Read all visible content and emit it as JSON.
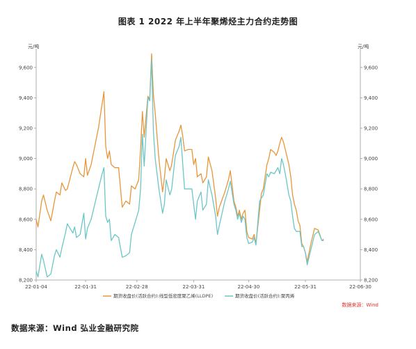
{
  "title": "图表 1 2022 年上半年聚烯烃主力合约走势图",
  "source_note": "数据来源：Wind 弘业金融研究院",
  "chart_data": {
    "type": "line",
    "x_labels": [
      "22-01-04",
      "22-01-31",
      "22-02-28",
      "22-03-31",
      "22-04-30",
      "22-05-31",
      "22-06-30"
    ],
    "x_range": [
      "2022-01-04",
      "2022-06-30"
    ],
    "ylim": [
      8200,
      9700
    ],
    "yticks": [
      8200,
      8400,
      8600,
      8800,
      9000,
      9200,
      9400,
      9600
    ],
    "ytick_labels": [
      "8,200",
      "8,400",
      "8,600",
      "8,800",
      "9,000",
      "9,200",
      "9,400",
      "9,600"
    ],
    "y_unit_left": "元/吨",
    "y_unit_right": "元/吨",
    "legend_position": "bottom",
    "source_in_chart": "数据来源：Wind",
    "series": [
      {
        "name": "期货收盘价(活跃合约):线型低密度聚乙烯(LLDPE)",
        "color": "#E8963A",
        "points": [
          [
            "2022-01-04",
            8600
          ],
          [
            "2022-01-05",
            8550
          ],
          [
            "2022-01-07",
            8720
          ],
          [
            "2022-01-08",
            8760
          ],
          [
            "2022-01-10",
            8660
          ],
          [
            "2022-01-12",
            8590
          ],
          [
            "2022-01-14",
            8720
          ],
          [
            "2022-01-15",
            8780
          ],
          [
            "2022-01-17",
            8760
          ],
          [
            "2022-01-18",
            8840
          ],
          [
            "2022-01-20",
            8790
          ],
          [
            "2022-01-21",
            8800
          ],
          [
            "2022-01-24",
            8940
          ],
          [
            "2022-01-25",
            8980
          ],
          [
            "2022-01-26",
            8960
          ],
          [
            "2022-01-28",
            8900
          ],
          [
            "2022-01-30",
            8880
          ],
          [
            "2022-01-31",
            9000
          ],
          [
            "2022-02-01",
            8890
          ],
          [
            "2022-02-03",
            8960
          ],
          [
            "2022-02-07",
            9200
          ],
          [
            "2022-02-09",
            9360
          ],
          [
            "2022-02-10",
            9440
          ],
          [
            "2022-02-11",
            9080
          ],
          [
            "2022-02-12",
            9000
          ],
          [
            "2022-02-13",
            9050
          ],
          [
            "2022-02-14",
            8960
          ],
          [
            "2022-02-16",
            8940
          ],
          [
            "2022-02-18",
            8940
          ],
          [
            "2022-02-20",
            8680
          ],
          [
            "2022-02-22",
            8720
          ],
          [
            "2022-02-24",
            8700
          ],
          [
            "2022-02-25",
            8820
          ],
          [
            "2022-02-27",
            8800
          ],
          [
            "2022-03-01",
            8860
          ],
          [
            "2022-03-02",
            9060
          ],
          [
            "2022-03-03",
            9310
          ],
          [
            "2022-03-04",
            9140
          ],
          [
            "2022-03-06",
            9410
          ],
          [
            "2022-03-07",
            9390
          ],
          [
            "2022-03-08",
            9690
          ],
          [
            "2022-03-09",
            9420
          ],
          [
            "2022-03-10",
            9300
          ],
          [
            "2022-03-12",
            9000
          ],
          [
            "2022-03-14",
            8780
          ],
          [
            "2022-03-15",
            8870
          ],
          [
            "2022-03-16",
            9000
          ],
          [
            "2022-03-18",
            8920
          ],
          [
            "2022-03-19",
            8960
          ],
          [
            "2022-03-21",
            9120
          ],
          [
            "2022-03-23",
            9180
          ],
          [
            "2022-03-24",
            9220
          ],
          [
            "2022-03-25",
            9150
          ],
          [
            "2022-03-26",
            9050
          ],
          [
            "2022-03-28",
            9060
          ],
          [
            "2022-03-30",
            9060
          ],
          [
            "2022-03-31",
            8960
          ],
          [
            "2022-04-01",
            9000
          ],
          [
            "2022-04-02",
            8880
          ],
          [
            "2022-04-04",
            8900
          ],
          [
            "2022-04-05",
            8840
          ],
          [
            "2022-04-07",
            8880
          ],
          [
            "2022-04-08",
            9010
          ],
          [
            "2022-04-10",
            8920
          ],
          [
            "2022-04-12",
            8740
          ],
          [
            "2022-04-13",
            8620
          ],
          [
            "2022-04-14",
            8680
          ],
          [
            "2022-04-17",
            8780
          ],
          [
            "2022-04-19",
            8860
          ],
          [
            "2022-04-20",
            8920
          ],
          [
            "2022-04-22",
            8720
          ],
          [
            "2022-04-23",
            8680
          ],
          [
            "2022-04-24",
            8620
          ],
          [
            "2022-04-25",
            8660
          ],
          [
            "2022-04-26",
            8600
          ],
          [
            "2022-04-27",
            8640
          ],
          [
            "2022-04-28",
            8660
          ],
          [
            "2022-04-29",
            8520
          ],
          [
            "2022-04-30",
            8480
          ],
          [
            "2022-05-02",
            8470
          ],
          [
            "2022-05-03",
            8500
          ],
          [
            "2022-05-04",
            8440
          ],
          [
            "2022-05-06",
            8660
          ],
          [
            "2022-05-07",
            8770
          ],
          [
            "2022-05-08",
            8800
          ],
          [
            "2022-05-10",
            8960
          ],
          [
            "2022-05-11",
            9000
          ],
          [
            "2022-05-12",
            9060
          ],
          [
            "2022-05-14",
            9040
          ],
          [
            "2022-05-15",
            9020
          ],
          [
            "2022-05-16",
            9050
          ],
          [
            "2022-05-17",
            9100
          ],
          [
            "2022-05-18",
            9140
          ],
          [
            "2022-05-19",
            9110
          ],
          [
            "2022-05-20",
            9060
          ],
          [
            "2022-05-22",
            8960
          ],
          [
            "2022-05-23",
            8880
          ],
          [
            "2022-05-24",
            8760
          ],
          [
            "2022-05-25",
            8700
          ],
          [
            "2022-05-26",
            8660
          ],
          [
            "2022-05-27",
            8590
          ],
          [
            "2022-05-28",
            8560
          ],
          [
            "2022-05-29",
            8440
          ],
          [
            "2022-05-30",
            8420
          ],
          [
            "2022-05-31",
            8380
          ],
          [
            "2022-06-01",
            8320
          ],
          [
            "2022-06-03",
            8440
          ],
          [
            "2022-06-05",
            8540
          ],
          [
            "2022-06-07",
            8530
          ],
          [
            "2022-06-09",
            8460
          ],
          [
            "2022-06-10",
            8460
          ]
        ]
      },
      {
        "name": "期货收盘价(活跃合约):聚丙烯",
        "color": "#6CC6C8",
        "points": [
          [
            "2022-01-04",
            8260
          ],
          [
            "2022-01-05",
            8220
          ],
          [
            "2022-01-07",
            8370
          ],
          [
            "2022-01-08",
            8330
          ],
          [
            "2022-01-10",
            8220
          ],
          [
            "2022-01-12",
            8240
          ],
          [
            "2022-01-14",
            8360
          ],
          [
            "2022-01-15",
            8400
          ],
          [
            "2022-01-17",
            8350
          ],
          [
            "2022-01-18",
            8410
          ],
          [
            "2022-01-20",
            8510
          ],
          [
            "2022-01-21",
            8570
          ],
          [
            "2022-01-24",
            8510
          ],
          [
            "2022-01-25",
            8550
          ],
          [
            "2022-01-26",
            8480
          ],
          [
            "2022-01-28",
            8500
          ],
          [
            "2022-01-30",
            8640
          ],
          [
            "2022-01-31",
            8470
          ],
          [
            "2022-02-01",
            8540
          ],
          [
            "2022-02-03",
            8600
          ],
          [
            "2022-02-07",
            8800
          ],
          [
            "2022-02-09",
            8900
          ],
          [
            "2022-02-10",
            8940
          ],
          [
            "2022-02-11",
            8620
          ],
          [
            "2022-02-12",
            8580
          ],
          [
            "2022-02-13",
            8600
          ],
          [
            "2022-02-14",
            8460
          ],
          [
            "2022-02-16",
            8500
          ],
          [
            "2022-02-18",
            8480
          ],
          [
            "2022-02-20",
            8350
          ],
          [
            "2022-02-22",
            8360
          ],
          [
            "2022-02-24",
            8380
          ],
          [
            "2022-02-25",
            8500
          ],
          [
            "2022-02-27",
            8580
          ],
          [
            "2022-03-01",
            8660
          ],
          [
            "2022-03-02",
            8800
          ],
          [
            "2022-03-03",
            9160
          ],
          [
            "2022-03-04",
            8950
          ],
          [
            "2022-03-06",
            9400
          ],
          [
            "2022-03-07",
            9380
          ],
          [
            "2022-03-08",
            9650
          ],
          [
            "2022-03-09",
            9180
          ],
          [
            "2022-03-10",
            9000
          ],
          [
            "2022-03-12",
            8800
          ],
          [
            "2022-03-14",
            8640
          ],
          [
            "2022-03-15",
            8700
          ],
          [
            "2022-03-16",
            8860
          ],
          [
            "2022-03-18",
            8760
          ],
          [
            "2022-03-19",
            8800
          ],
          [
            "2022-03-21",
            9020
          ],
          [
            "2022-03-23",
            9080
          ],
          [
            "2022-03-24",
            9140
          ],
          [
            "2022-03-25",
            8970
          ],
          [
            "2022-03-26",
            8800
          ],
          [
            "2022-03-28",
            8800
          ],
          [
            "2022-03-30",
            8800
          ],
          [
            "2022-03-31",
            8700
          ],
          [
            "2022-04-01",
            8600
          ],
          [
            "2022-04-02",
            8720
          ],
          [
            "2022-04-04",
            8780
          ],
          [
            "2022-04-05",
            8660
          ],
          [
            "2022-04-07",
            8700
          ],
          [
            "2022-04-08",
            8860
          ],
          [
            "2022-04-10",
            8760
          ],
          [
            "2022-04-12",
            8620
          ],
          [
            "2022-04-13",
            8500
          ],
          [
            "2022-04-14",
            8560
          ],
          [
            "2022-04-17",
            8720
          ],
          [
            "2022-04-19",
            8800
          ],
          [
            "2022-04-20",
            8850
          ],
          [
            "2022-04-22",
            8700
          ],
          [
            "2022-04-23",
            8660
          ],
          [
            "2022-04-24",
            8600
          ],
          [
            "2022-04-25",
            8640
          ],
          [
            "2022-04-26",
            8580
          ],
          [
            "2022-04-27",
            8620
          ],
          [
            "2022-04-28",
            8600
          ],
          [
            "2022-04-29",
            8480
          ],
          [
            "2022-04-30",
            8440
          ],
          [
            "2022-05-02",
            8450
          ],
          [
            "2022-05-03",
            8480
          ],
          [
            "2022-05-04",
            8430
          ],
          [
            "2022-05-06",
            8720
          ],
          [
            "2022-05-07",
            8740
          ],
          [
            "2022-05-08",
            8760
          ],
          [
            "2022-05-10",
            8900
          ],
          [
            "2022-05-11",
            8880
          ],
          [
            "2022-05-12",
            8910
          ],
          [
            "2022-05-14",
            8900
          ],
          [
            "2022-05-15",
            8920
          ],
          [
            "2022-05-16",
            8940
          ],
          [
            "2022-05-17",
            8900
          ],
          [
            "2022-05-18",
            9000
          ],
          [
            "2022-05-19",
            8960
          ],
          [
            "2022-05-20",
            8900
          ],
          [
            "2022-05-22",
            8760
          ],
          [
            "2022-05-23",
            8720
          ],
          [
            "2022-05-24",
            8620
          ],
          [
            "2022-05-25",
            8540
          ],
          [
            "2022-05-26",
            8520
          ],
          [
            "2022-05-27",
            8520
          ],
          [
            "2022-05-28",
            8520
          ],
          [
            "2022-05-29",
            8420
          ],
          [
            "2022-05-30",
            8420
          ],
          [
            "2022-05-31",
            8380
          ],
          [
            "2022-06-01",
            8300
          ],
          [
            "2022-06-03",
            8400
          ],
          [
            "2022-06-05",
            8500
          ],
          [
            "2022-06-07",
            8520
          ],
          [
            "2022-06-09",
            8460
          ],
          [
            "2022-06-10",
            8470
          ]
        ]
      }
    ]
  }
}
